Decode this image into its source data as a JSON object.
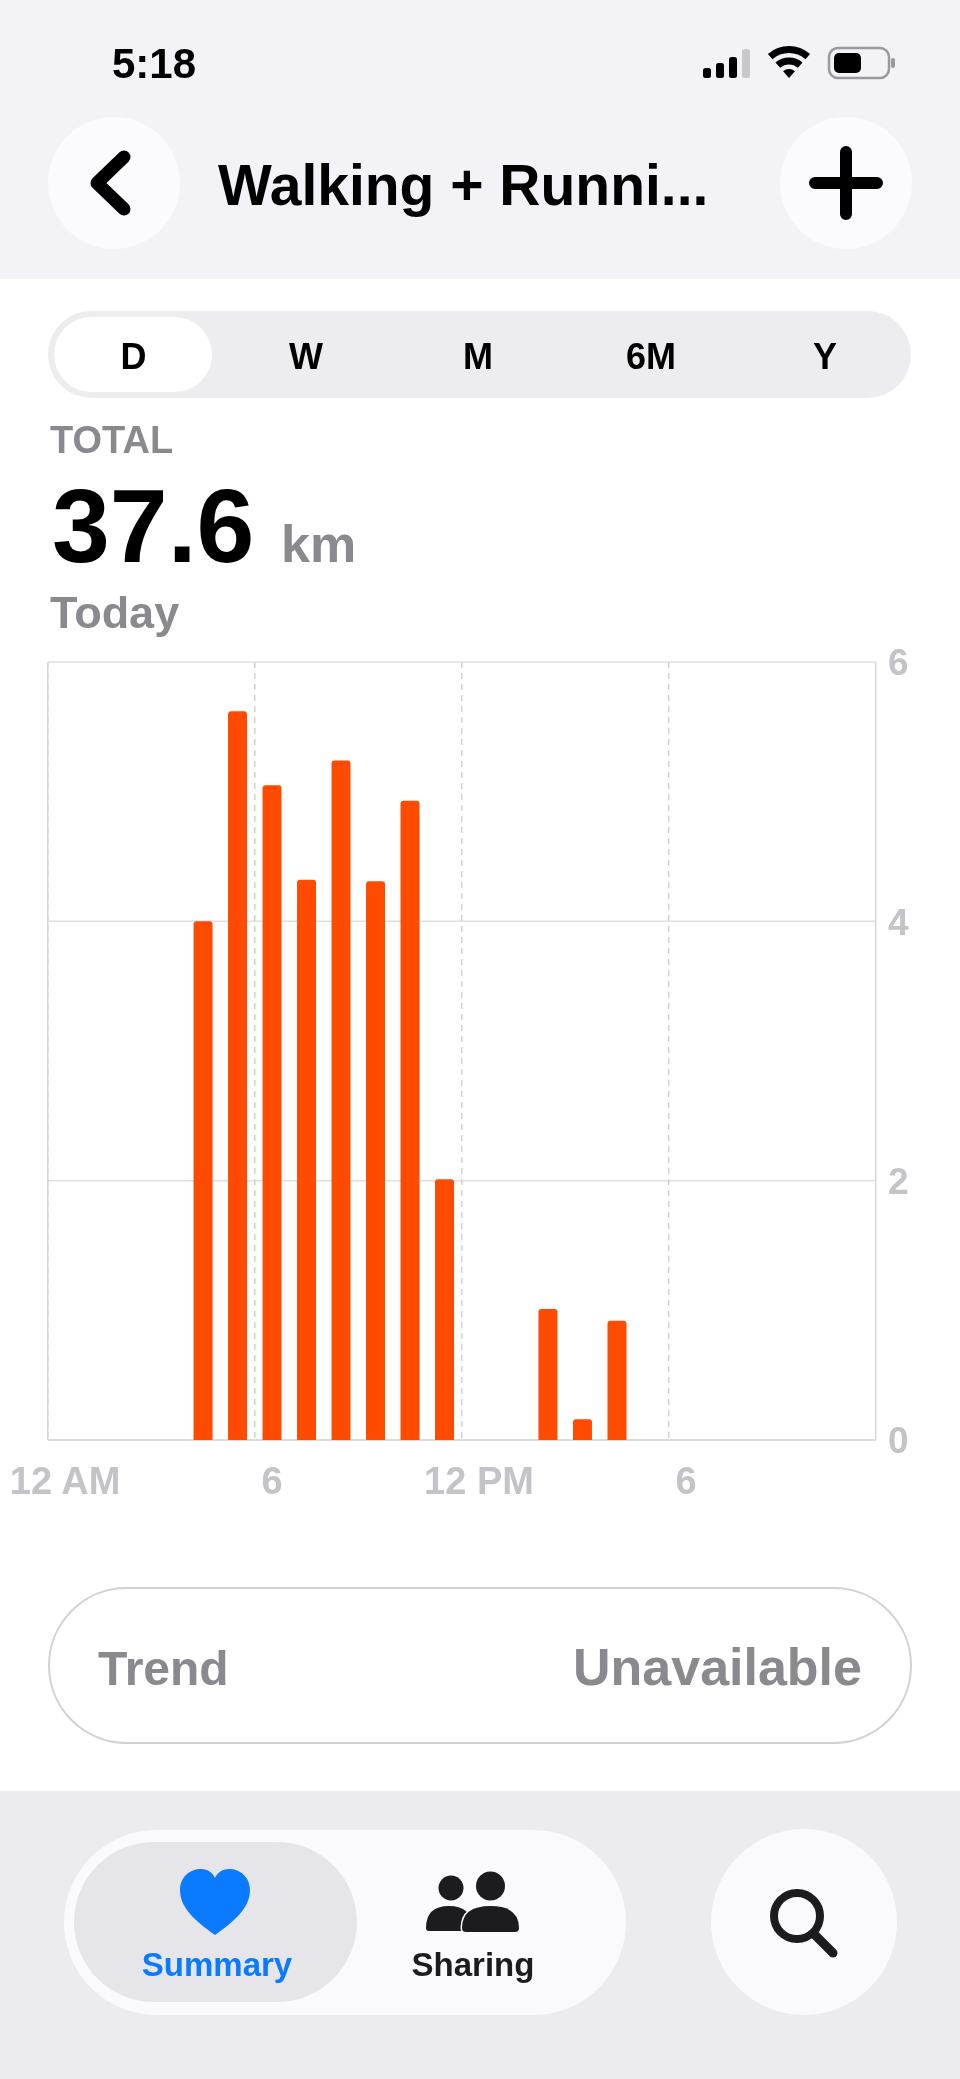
{
  "chart_data": {
    "type": "bar",
    "title": "Walking + Runni...",
    "categories": [
      "12 AM",
      null,
      null,
      null,
      null,
      null,
      "6",
      null,
      null,
      null,
      null,
      null,
      "12 PM",
      null,
      null,
      null,
      null,
      null,
      "6",
      null,
      null,
      null,
      null,
      null
    ],
    "values": [
      null,
      null,
      null,
      null,
      4.0,
      5.62,
      5.05,
      4.32,
      5.24,
      4.31,
      4.93,
      2.01,
      null,
      null,
      1.01,
      0.16,
      0.92,
      null,
      null,
      null,
      null,
      null,
      null,
      null
    ],
    "color": "#ff4b00",
    "ylim": [
      0,
      6
    ],
    "yticks": [
      0,
      2,
      4,
      6
    ],
    "grid": true,
    "annotations": [
      "5:18",
      "D",
      "W",
      "M",
      "6M",
      "Y",
      "TOTAL",
      "37.6",
      "km",
      "Today",
      "Trend",
      "Unavailable",
      "Summary",
      "Sharing"
    ]
  }
}
